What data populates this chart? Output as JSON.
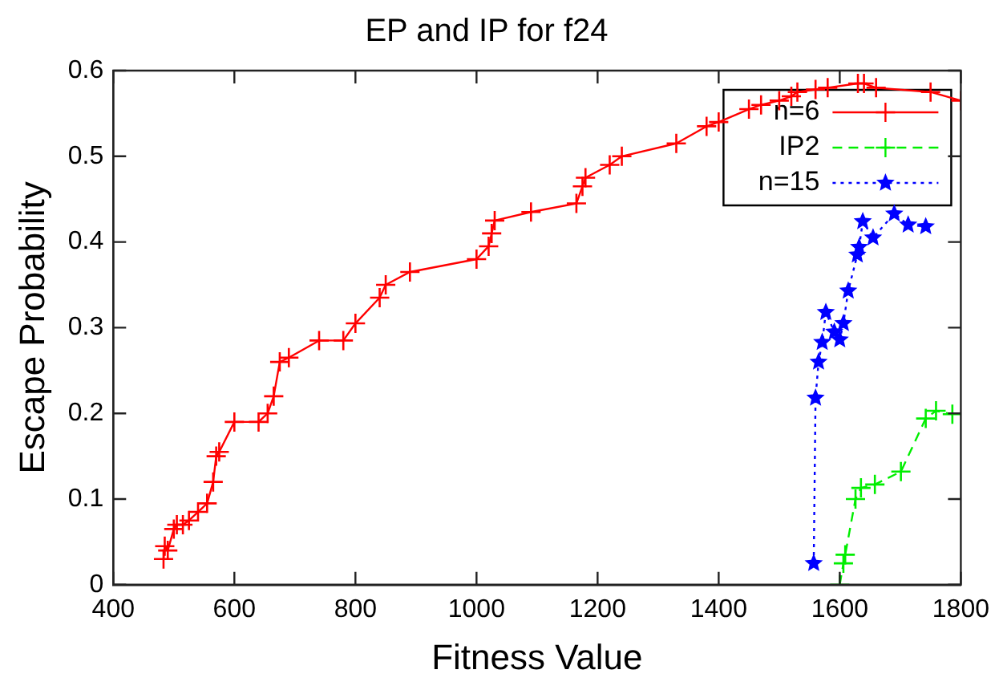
{
  "chart_data": {
    "type": "line",
    "title": "EP and IP for f24",
    "xlabel": "Fitness Value",
    "ylabel": "Escape Probability",
    "xlim": [
      400,
      1800
    ],
    "xticks": [
      400,
      600,
      800,
      1000,
      1200,
      1400,
      1600,
      1800
    ],
    "ylim": [
      0,
      0.6
    ],
    "yticks": [
      0,
      0.1,
      0.2,
      0.3,
      0.4,
      0.5,
      0.6
    ],
    "grid": false,
    "legend": "top right",
    "series": [
      {
        "name": "n=6",
        "color": "#ff0000",
        "marker": "cross",
        "line_style": "solid",
        "x": [
          483,
          485,
          490,
          500,
          505,
          515,
          525,
          540,
          555,
          565,
          570,
          575,
          600,
          640,
          655,
          665,
          675,
          690,
          740,
          780,
          800,
          840,
          850,
          890,
          1000,
          1020,
          1025,
          1030,
          1090,
          1165,
          1175,
          1180,
          1220,
          1240,
          1330,
          1380,
          1400,
          1450,
          1470,
          1500,
          1520,
          1530,
          1560,
          1580,
          1630,
          1640,
          1660,
          1750,
          1800
        ],
        "values": [
          0.03,
          0.045,
          0.04,
          0.065,
          0.07,
          0.07,
          0.075,
          0.085,
          0.095,
          0.12,
          0.15,
          0.155,
          0.19,
          0.19,
          0.2,
          0.22,
          0.26,
          0.265,
          0.285,
          0.285,
          0.305,
          0.335,
          0.35,
          0.365,
          0.38,
          0.395,
          0.41,
          0.425,
          0.435,
          0.445,
          0.465,
          0.475,
          0.49,
          0.5,
          0.515,
          0.535,
          0.54,
          0.555,
          0.56,
          0.565,
          0.57,
          0.575,
          0.578,
          0.58,
          0.585,
          0.585,
          0.58,
          0.575,
          0.565
        ]
      },
      {
        "name": "IP2",
        "color": "#00ee00",
        "marker": "cross",
        "line_style": "dashed",
        "x": [
          1600,
          1606,
          1609,
          1626,
          1635,
          1658,
          1701,
          1742,
          1759,
          1786
        ],
        "values": [
          0,
          0.025,
          0.035,
          0.1,
          0.113,
          0.117,
          0.132,
          0.194,
          0.203,
          0.199
        ]
      },
      {
        "name": "n=15",
        "color": "#0000ff",
        "marker": "star",
        "line_style": "dotted",
        "x": [
          1557,
          1560,
          1565,
          1571,
          1577,
          1591,
          1600,
          1606,
          1614,
          1629,
          1632,
          1638,
          1655,
          1690,
          1713,
          1742
        ],
        "values": [
          0.025,
          0.218,
          0.26,
          0.283,
          0.318,
          0.295,
          0.286,
          0.305,
          0.343,
          0.385,
          0.394,
          0.424,
          0.405,
          0.433,
          0.42,
          0.418
        ]
      }
    ]
  }
}
